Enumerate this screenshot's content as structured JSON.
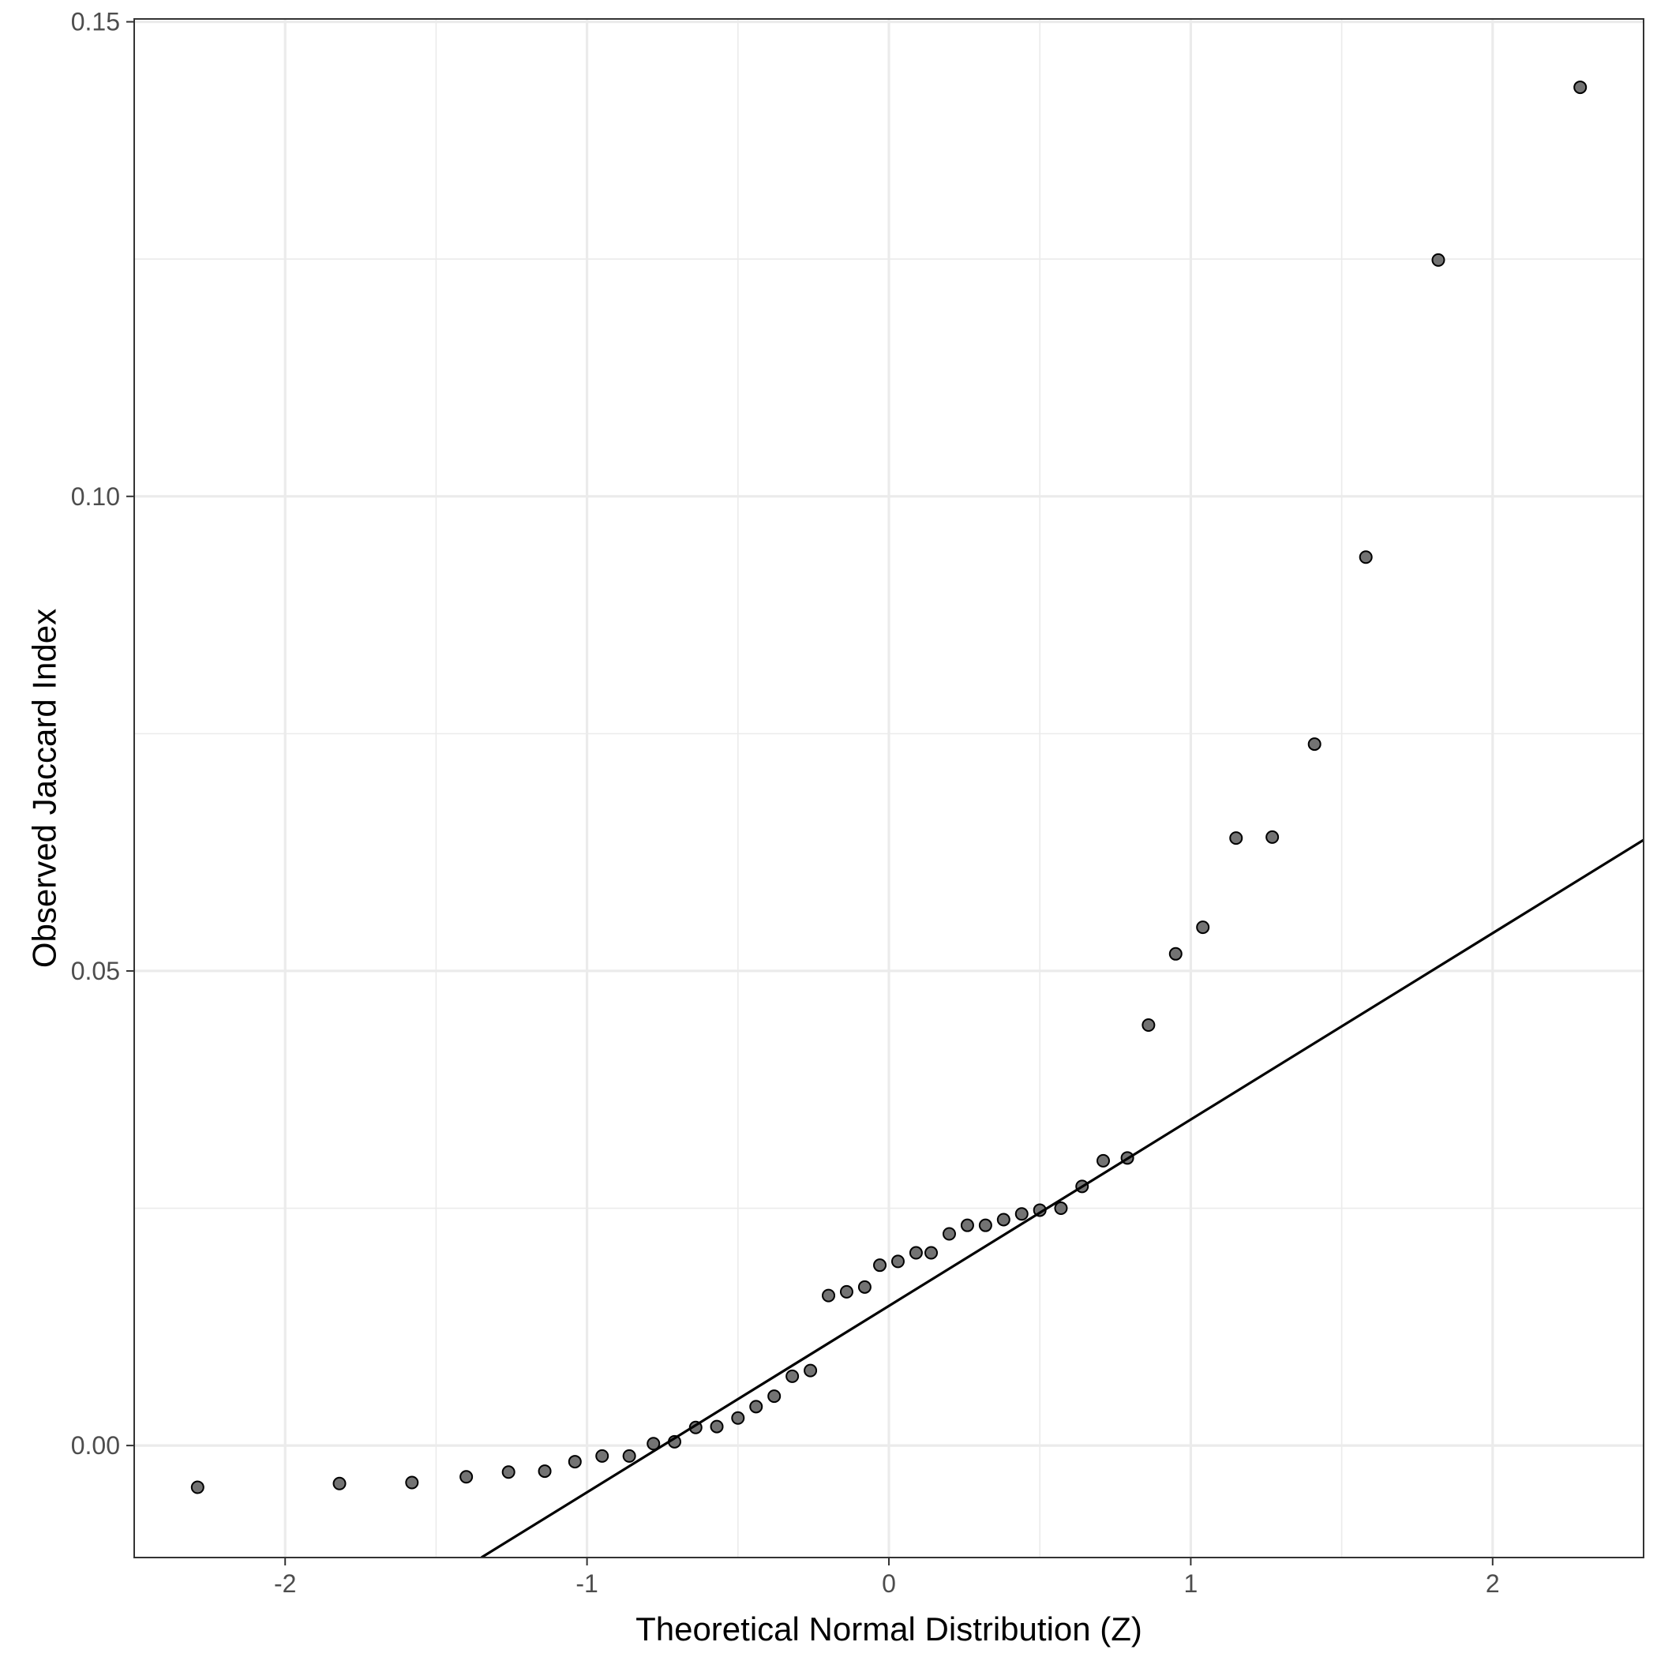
{
  "chart_data": {
    "type": "scatter",
    "xlabel": "Theoretical Normal Distribution (Z)",
    "ylabel": "Observed Jaccard Index",
    "xlim": [
      -2.5,
      2.5
    ],
    "ylim": [
      -0.0118,
      0.1503
    ],
    "x_ticks": [
      -2,
      -1,
      0,
      1,
      2
    ],
    "x_tick_labels": [
      "-2",
      "-1",
      "0",
      "1",
      "2"
    ],
    "y_ticks": [
      0.0,
      0.05,
      0.1,
      0.15
    ],
    "y_tick_labels": [
      "0.00",
      "0.05",
      "0.10",
      "0.15"
    ],
    "grid": true,
    "theme": "black-and-white",
    "point_color": "#6b6b6b",
    "point_edge_color": "#000000",
    "line_color": "#000000",
    "points": [
      {
        "x": -2.29,
        "y": -0.0044
      },
      {
        "x": -1.82,
        "y": -0.004
      },
      {
        "x": -1.58,
        "y": -0.0039
      },
      {
        "x": -1.4,
        "y": -0.0033
      },
      {
        "x": -1.26,
        "y": -0.0028
      },
      {
        "x": -1.14,
        "y": -0.0027
      },
      {
        "x": -1.04,
        "y": -0.0017
      },
      {
        "x": -0.95,
        "y": -0.0011
      },
      {
        "x": -0.86,
        "y": -0.0011
      },
      {
        "x": -0.78,
        "y": 0.0002
      },
      {
        "x": -0.71,
        "y": 0.0004
      },
      {
        "x": -0.64,
        "y": 0.0019
      },
      {
        "x": -0.57,
        "y": 0.002
      },
      {
        "x": -0.5,
        "y": 0.0029
      },
      {
        "x": -0.44,
        "y": 0.0041
      },
      {
        "x": -0.38,
        "y": 0.0052
      },
      {
        "x": -0.32,
        "y": 0.0073
      },
      {
        "x": -0.26,
        "y": 0.0079
      },
      {
        "x": -0.2,
        "y": 0.0158
      },
      {
        "x": -0.14,
        "y": 0.0162
      },
      {
        "x": -0.08,
        "y": 0.0167
      },
      {
        "x": -0.03,
        "y": 0.019
      },
      {
        "x": 0.03,
        "y": 0.0194
      },
      {
        "x": 0.09,
        "y": 0.0203
      },
      {
        "x": 0.14,
        "y": 0.0203
      },
      {
        "x": 0.2,
        "y": 0.0223
      },
      {
        "x": 0.26,
        "y": 0.0232
      },
      {
        "x": 0.32,
        "y": 0.0232
      },
      {
        "x": 0.38,
        "y": 0.0238
      },
      {
        "x": 0.44,
        "y": 0.0244
      },
      {
        "x": 0.5,
        "y": 0.0248
      },
      {
        "x": 0.57,
        "y": 0.025
      },
      {
        "x": 0.64,
        "y": 0.0273
      },
      {
        "x": 0.71,
        "y": 0.03
      },
      {
        "x": 0.79,
        "y": 0.0303
      },
      {
        "x": 0.86,
        "y": 0.0443
      },
      {
        "x": 0.95,
        "y": 0.0518
      },
      {
        "x": 1.04,
        "y": 0.0546
      },
      {
        "x": 1.15,
        "y": 0.064
      },
      {
        "x": 1.27,
        "y": 0.0641
      },
      {
        "x": 1.41,
        "y": 0.0739
      },
      {
        "x": 1.58,
        "y": 0.0936
      },
      {
        "x": 1.82,
        "y": 0.1249
      },
      {
        "x": 2.29,
        "y": 0.1431
      }
    ],
    "reference_line": {
      "x": [
        -1.35,
        2.5
      ],
      "y": [
        -0.0118,
        0.0638
      ]
    }
  }
}
